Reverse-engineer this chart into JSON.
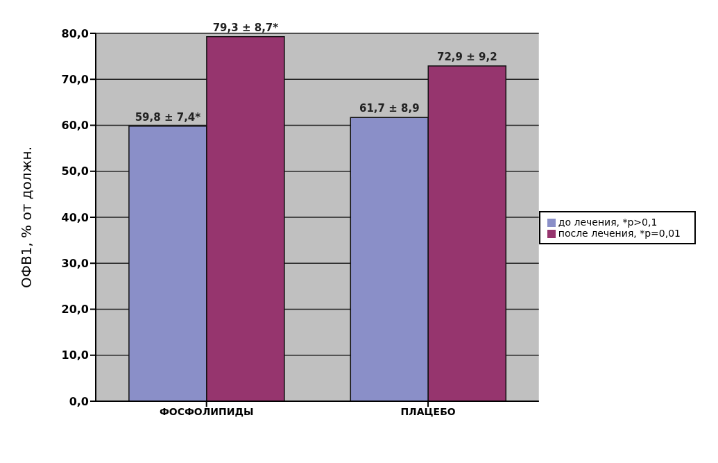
{
  "chart_data": {
    "type": "bar",
    "categories": [
      "ФОСФОЛИПИДЫ",
      "ПЛАЦЕБО"
    ],
    "series": [
      {
        "name": "до лечения, *p>0,1",
        "color": "#8a8fc8",
        "values": [
          59.8,
          61.7
        ],
        "value_labels": [
          "59,8 ± 7,4*",
          "61,7 ± 8,9"
        ]
      },
      {
        "name": "после лечения, *p=0,01",
        "color": "#96356e",
        "values": [
          79.3,
          72.9
        ],
        "value_labels": [
          "79,3 ± 8,7*",
          "72,9 ± 9,2"
        ]
      }
    ],
    "ylabel": "ОФВ1, % от должн.",
    "ylim": [
      0,
      80
    ],
    "yticks": [
      {
        "value": 0,
        "label": "0,0"
      },
      {
        "value": 10,
        "label": "10,0"
      },
      {
        "value": 20,
        "label": "20,0"
      },
      {
        "value": 30,
        "label": "30,0"
      },
      {
        "value": 40,
        "label": "40,0"
      },
      {
        "value": 50,
        "label": "50,0"
      },
      {
        "value": 60,
        "label": "60,0"
      },
      {
        "value": 70,
        "label": "70,0"
      },
      {
        "value": 80,
        "label": "80,0"
      }
    ],
    "grid": "y",
    "legend": "right"
  }
}
